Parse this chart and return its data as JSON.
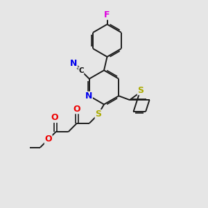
{
  "background_color": "#e6e6e6",
  "bond_color": "#1a1a1a",
  "atom_colors": {
    "N": "#0000ee",
    "O": "#ee0000",
    "S": "#aaaa00",
    "F": "#dd00dd",
    "C": "#111111"
  },
  "fig_width": 3.0,
  "fig_height": 3.0,
  "dpi": 100
}
